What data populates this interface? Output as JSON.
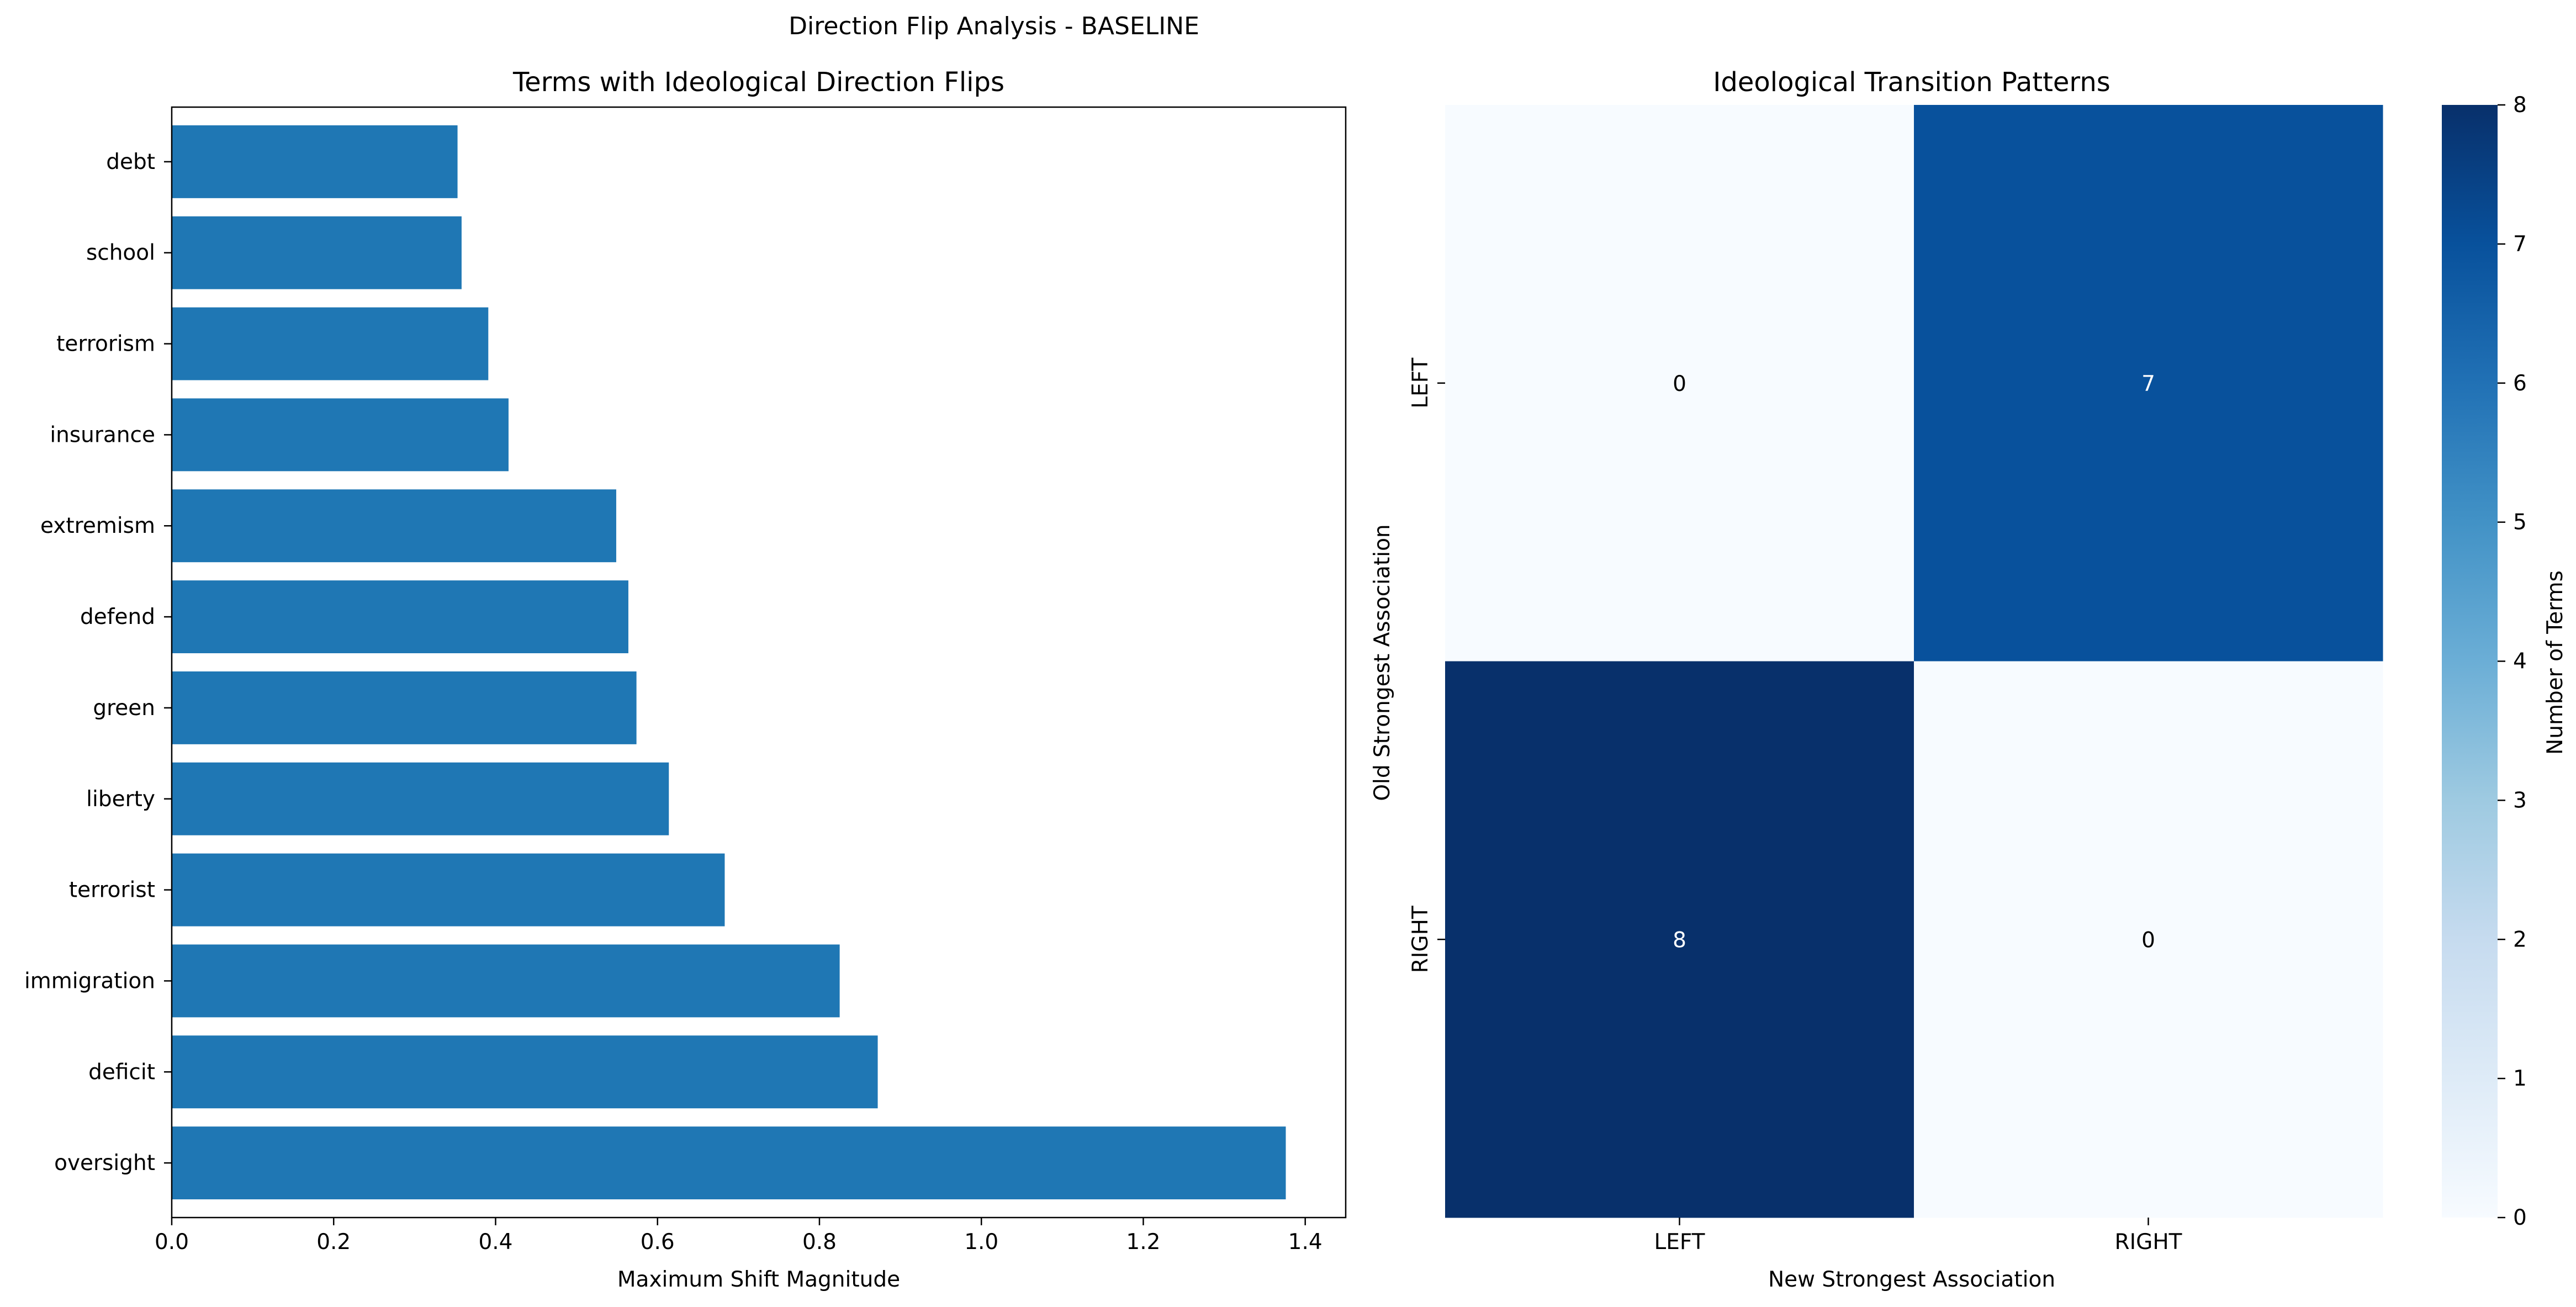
{
  "figure": {
    "suptitle": "Direction Flip Analysis - BASELINE"
  },
  "chart_data": [
    {
      "type": "bar",
      "orientation": "horizontal",
      "title": "Terms with Ideological Direction Flips",
      "xlabel": "Maximum Shift Magnitude",
      "ylabel": "",
      "xlim": [
        0,
        1.45
      ],
      "xticks": [
        "0.0",
        "0.2",
        "0.4",
        "0.6",
        "0.8",
        "1.0",
        "1.2",
        "1.4"
      ],
      "categories": [
        "oversight",
        "deficit",
        "immigration",
        "terrorist",
        "liberty",
        "green",
        "defend",
        "extremism",
        "insurance",
        "terrorism",
        "school",
        "debt"
      ],
      "values": [
        1.376,
        0.872,
        0.825,
        0.683,
        0.614,
        0.574,
        0.564,
        0.549,
        0.416,
        0.391,
        0.358,
        0.353
      ],
      "bar_color": "#1f77b4",
      "grid": false
    },
    {
      "type": "heatmap",
      "title": "Ideological Transition Patterns",
      "xlabel": "New Strongest Association",
      "ylabel": "Old Strongest Association",
      "x_categories": [
        "LEFT",
        "RIGHT"
      ],
      "y_categories": [
        "LEFT",
        "RIGHT"
      ],
      "values": [
        [
          0,
          7
        ],
        [
          8,
          0
        ]
      ],
      "colormap": "Blues",
      "vmin": 0,
      "vmax": 8,
      "colorbar": {
        "label": "Number of Terms",
        "ticks": [
          "0",
          "1",
          "2",
          "3",
          "4",
          "5",
          "6",
          "7",
          "8"
        ]
      }
    }
  ]
}
